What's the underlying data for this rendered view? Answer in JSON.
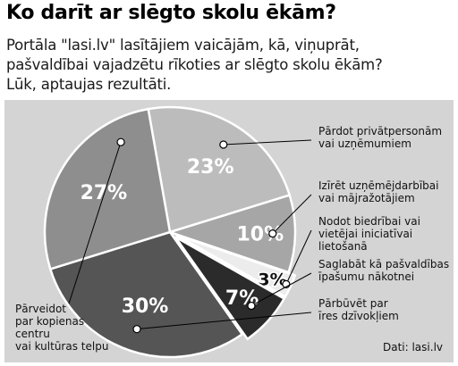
{
  "header": {
    "title": "Ko darīt ar slēgto skolu ēkām?",
    "subtitle_lines": [
      "Portāla \"lasi.lv\" lasītājiem vaicājām, kā, viņuprāt,",
      "pašvaldībai vajadzētu rīkoties ar slēgto skolu ēkām?",
      "Lūk, aptaujas rezultāti."
    ]
  },
  "source": "Dati: lasi.lv",
  "colors": {
    "panel_bg": "#d4d4d4",
    "slices": [
      "#bcbcbc",
      "#a6a6a6",
      "#ececec",
      "#2b2b2b",
      "#555555",
      "#8e8e8e",
      "#7a7a7a"
    ]
  },
  "chart_data": {
    "type": "pie",
    "slices": [
      {
        "value": 23,
        "value_label": "23%",
        "label_lines": [
          "Pārdot privātpersonām",
          "vai uzņēmumiem"
        ]
      },
      {
        "value": 10,
        "value_label": "10%",
        "label_lines": [
          "Izīrēt uzņēmējdarbībai",
          "vai mājražotājiem"
        ]
      },
      {
        "value": 3,
        "value_label": "3%",
        "label_lines": [
          "Nodot biedrībai vai",
          "vietējai iniciatīvai",
          "lietošanā"
        ]
      },
      {
        "value": 7,
        "value_label": "7%",
        "label_lines": [
          "Saglabāt kā pašvaldības",
          "īpašumu nākotnei"
        ]
      },
      {
        "value": 30,
        "value_label": "30%",
        "label_lines": [
          "Pārbūvēt par",
          "īres dzīvokļiem"
        ]
      },
      {
        "value": 27,
        "value_label": "27%",
        "label_lines": [
          "Pārveidot",
          "par kopienas",
          "centru",
          "vai kultūras telpu"
        ]
      }
    ]
  }
}
